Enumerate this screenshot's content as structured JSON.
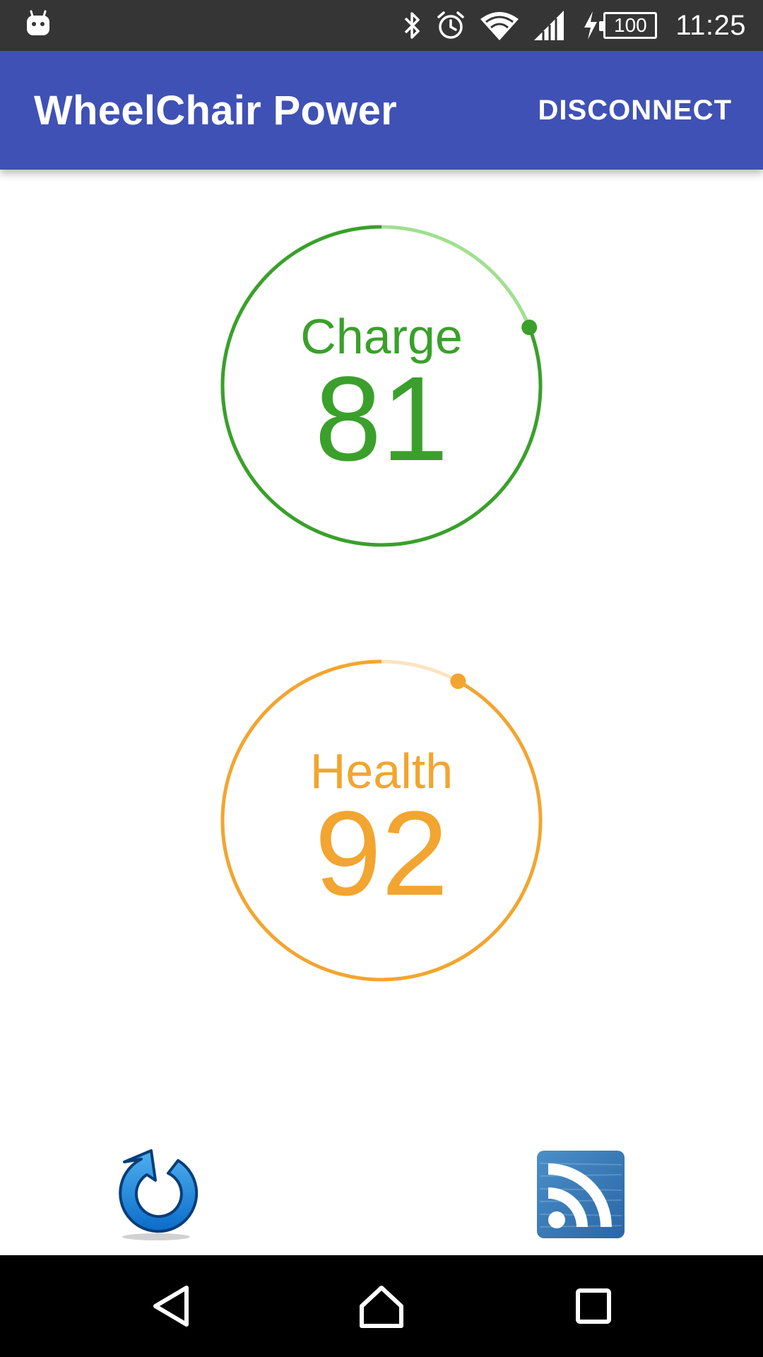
{
  "status_bar": {
    "notification_icon": "android-robot-icon",
    "icons": [
      "bluetooth-icon",
      "alarm-icon",
      "wifi-icon",
      "cell-signal-icon",
      "charging-icon"
    ],
    "battery_level": "100",
    "time": "11:25"
  },
  "app_bar": {
    "title": "WheelChair Power",
    "action_label": "DISCONNECT",
    "color": "#3f51b5"
  },
  "gauges": {
    "charge": {
      "label": "Charge",
      "value": "81",
      "percent": 81,
      "color": "#3aa02b",
      "track_color": "#9fe08f"
    },
    "health": {
      "label": "Health",
      "value": "92",
      "percent": 92,
      "color": "#f2a530",
      "track_color": "#fbe4c0"
    }
  },
  "actions": {
    "refresh_icon": "refresh-icon",
    "rss_icon": "rss-icon"
  },
  "nav_bar": {
    "back_icon": "back-icon",
    "home_icon": "home-icon",
    "recents_icon": "recents-icon"
  }
}
